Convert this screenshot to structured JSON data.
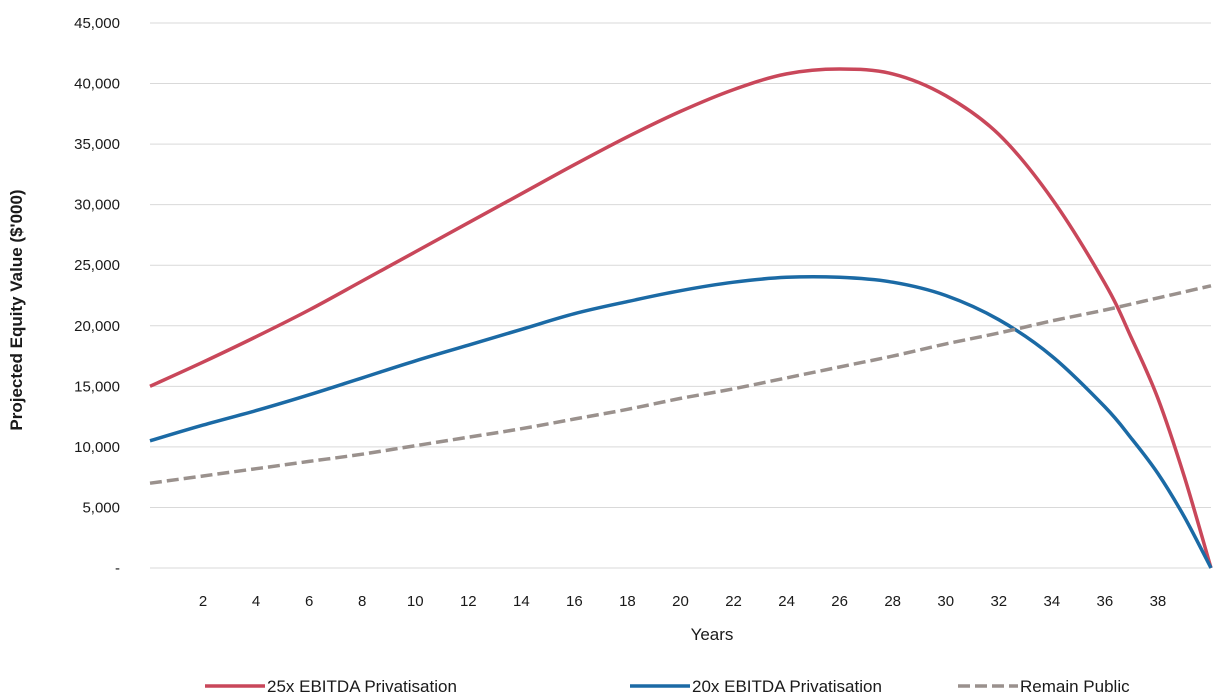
{
  "chart_data": {
    "type": "line",
    "xlabel": "Years",
    "ylabel": "Projected Equity Value ($'000)",
    "xlim": [
      0,
      40
    ],
    "ylim": [
      0,
      45000
    ],
    "x_ticks": [
      2,
      4,
      6,
      8,
      10,
      12,
      14,
      16,
      18,
      20,
      22,
      24,
      26,
      28,
      30,
      32,
      34,
      36,
      38
    ],
    "x_tick_labels": [
      "2",
      "4",
      "6",
      "8",
      "10",
      "12",
      "14",
      "16",
      "18",
      "20",
      "22",
      "24",
      "26",
      "28",
      "30",
      "32",
      "34",
      "36",
      "38"
    ],
    "y_ticks": [
      0,
      5000,
      10000,
      15000,
      20000,
      25000,
      30000,
      35000,
      40000,
      45000
    ],
    "y_tick_labels": [
      "-",
      "5,000",
      "10,000",
      "15,000",
      "20,000",
      "25,000",
      "30,000",
      "35,000",
      "40,000",
      "45,000"
    ],
    "grid": "horizontal",
    "legend_position": "bottom",
    "x": [
      0,
      2,
      4,
      6,
      8,
      10,
      12,
      14,
      16,
      18,
      20,
      22,
      24,
      26,
      28,
      30,
      32,
      34,
      36,
      37,
      38,
      39,
      40
    ],
    "series": [
      {
        "name": "25x EBITDA Privatisation",
        "color": "#c9475a",
        "dash": "solid",
        "values": [
          15000,
          17000,
          19100,
          21300,
          23700,
          26100,
          28500,
          30900,
          33300,
          35600,
          37700,
          39500,
          40800,
          41200,
          40800,
          39000,
          35800,
          30500,
          23500,
          19000,
          14000,
          7500,
          0
        ]
      },
      {
        "name": "20x EBITDA Privatisation",
        "color": "#1b6aa5",
        "dash": "solid",
        "values": [
          10500,
          11800,
          13000,
          14300,
          15700,
          17100,
          18400,
          19700,
          21000,
          22000,
          22900,
          23600,
          24000,
          24000,
          23600,
          22500,
          20500,
          17500,
          13300,
          10700,
          7800,
          4200,
          0
        ]
      },
      {
        "name": "Remain Public",
        "color": "#9a918d",
        "dash": "dashed",
        "values": [
          7000,
          7600,
          8200,
          8800,
          9400,
          10100,
          10800,
          11500,
          12300,
          13100,
          14000,
          14800,
          15700,
          16600,
          17500,
          18500,
          19400,
          20400,
          21300,
          21800,
          22300,
          22800,
          23300
        ]
      }
    ]
  }
}
